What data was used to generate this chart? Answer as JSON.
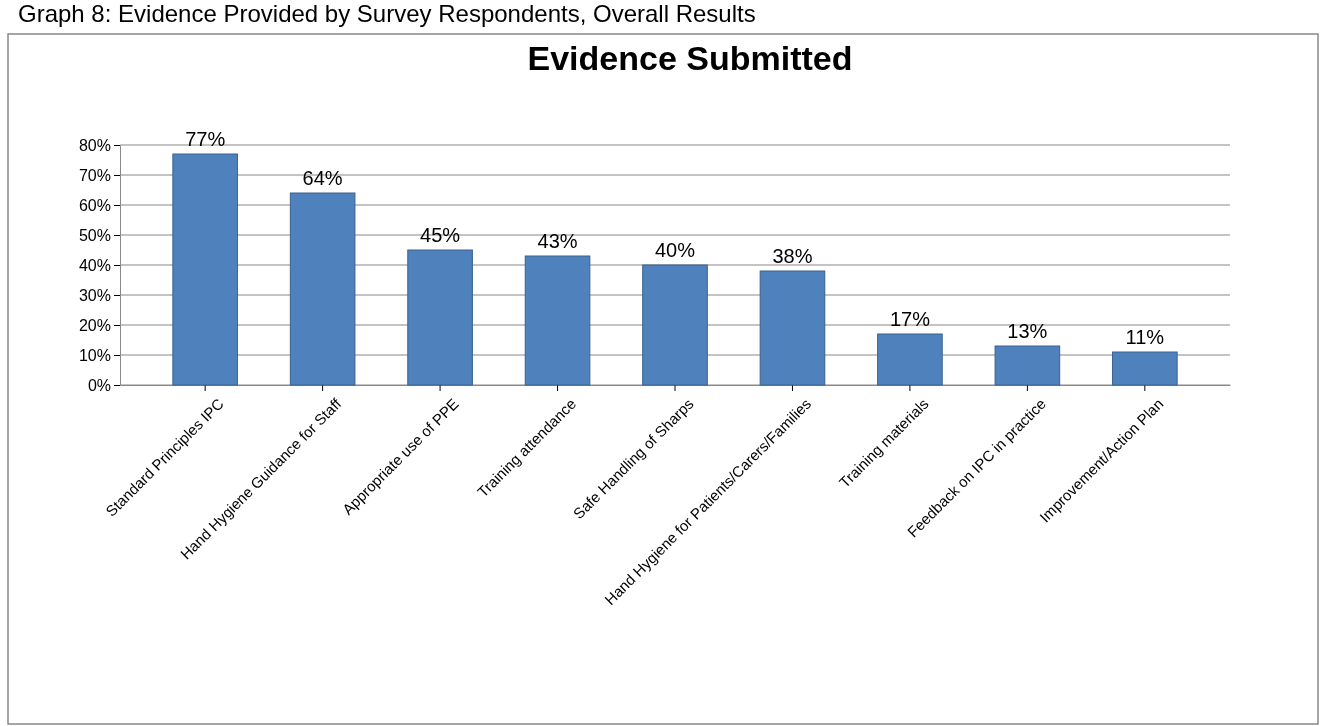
{
  "chart_data": {
    "type": "bar",
    "title": "Evidence Submitted",
    "categories": [
      "Standard Principles IPC",
      "Hand Hygiene Guidance for Staff",
      "Appropriate use of PPE",
      "Training attendance",
      "Safe Handling of Sharps",
      "Hand Hygiene for Patients/Carers/Families",
      "Training materials",
      "Feedback on IPC in practice",
      "Improvement/Action Plan"
    ],
    "values": [
      77,
      64,
      45,
      43,
      40,
      38,
      17,
      13,
      11
    ],
    "color": "#4f81bd",
    "ylim": [
      0,
      80
    ],
    "yticks": [
      {
        "value": 0,
        "label": "0%"
      },
      {
        "value": 10,
        "label": "10%"
      },
      {
        "value": 20,
        "label": "20%"
      },
      {
        "value": 30,
        "label": "30%"
      },
      {
        "value": 40,
        "label": "40%"
      },
      {
        "value": 50,
        "label": "50%"
      },
      {
        "value": 60,
        "label": "60%"
      },
      {
        "value": 70,
        "label": "70%"
      },
      {
        "value": 80,
        "label": "80%"
      }
    ],
    "value_labels": [
      "77%",
      "64%",
      "45%",
      "43%",
      "40%",
      "38%",
      "17%",
      "13%",
      "11%"
    ],
    "grid": "y",
    "annotations": [
      "Graph 8: Evidence Provided by Survey Respondents, Overall Results"
    ]
  }
}
